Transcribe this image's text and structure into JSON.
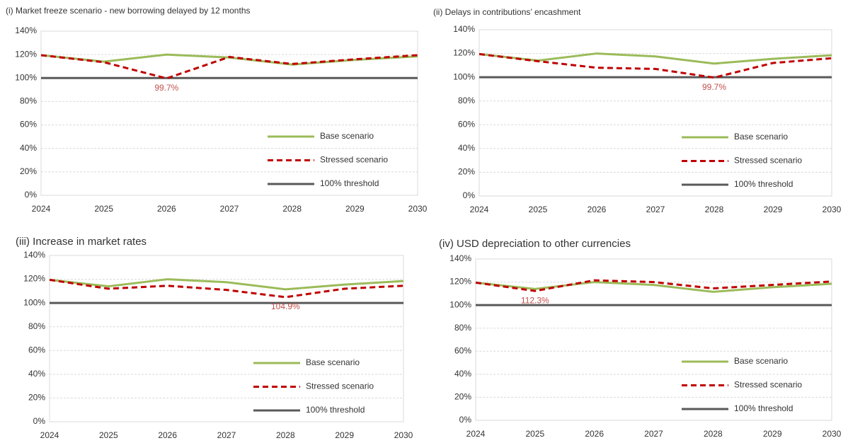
{
  "chart_data": [
    {
      "type": "line",
      "title": "(i) Market freeze scenario - new borrowing delayed by 12 months",
      "x": [
        2024,
        2025,
        2026,
        2027,
        2028,
        2029,
        2030
      ],
      "xlim": [
        2024,
        2030
      ],
      "xticks": [
        2024,
        2025,
        2026,
        2027,
        2028,
        2029,
        2030
      ],
      "ylim": [
        0,
        140
      ],
      "yticks": [
        {
          "value": 0,
          "label": "0%"
        },
        {
          "value": 20,
          "label": "20%"
        },
        {
          "value": 40,
          "label": "40%"
        },
        {
          "value": 60,
          "label": "60%"
        },
        {
          "value": 80,
          "label": "80%"
        },
        {
          "value": 100,
          "label": "100%"
        },
        {
          "value": 120,
          "label": "120%"
        },
        {
          "value": 140,
          "label": "140%"
        }
      ],
      "grid": true,
      "legend": "lower right",
      "series": [
        {
          "name": "Base scenario",
          "color": "#9bbb59",
          "style": "solid",
          "values": [
            119.5,
            114,
            120,
            117.5,
            111.5,
            115.5,
            118.5
          ]
        },
        {
          "name": "Stressed scenario",
          "color": "#c00000",
          "style": "dashed",
          "values": [
            119.5,
            113.5,
            99.7,
            118,
            112,
            116,
            119.5
          ]
        },
        {
          "name": "100% threshold",
          "color": "#595959",
          "style": "solid",
          "values": [
            100,
            100,
            100,
            100,
            100,
            100,
            100
          ]
        }
      ],
      "annotations": [
        {
          "text": "99.7%",
          "x": 2026,
          "y": 99.7
        }
      ]
    },
    {
      "type": "line",
      "title": "(ii) Delays in contributions’ encashment",
      "x": [
        2024,
        2025,
        2026,
        2027,
        2028,
        2029,
        2030
      ],
      "xlim": [
        2024,
        2030
      ],
      "xticks": [
        2024,
        2025,
        2026,
        2027,
        2028,
        2029,
        2030
      ],
      "ylim": [
        0,
        140
      ],
      "yticks": [
        {
          "value": 0,
          "label": "0%"
        },
        {
          "value": 20,
          "label": "20%"
        },
        {
          "value": 40,
          "label": "40%"
        },
        {
          "value": 60,
          "label": "60%"
        },
        {
          "value": 80,
          "label": "80%"
        },
        {
          "value": 100,
          "label": "100%"
        },
        {
          "value": 120,
          "label": "120%"
        },
        {
          "value": 140,
          "label": "140%"
        }
      ],
      "grid": true,
      "legend": "lower right",
      "series": [
        {
          "name": "Base scenario",
          "color": "#9bbb59",
          "style": "solid",
          "values": [
            119.5,
            114,
            120,
            117.5,
            111.5,
            115.5,
            118.5
          ]
        },
        {
          "name": "Stressed scenario",
          "color": "#c00000",
          "style": "dashed",
          "values": [
            119.5,
            113.5,
            108,
            107,
            99.7,
            112,
            116
          ]
        },
        {
          "name": "100% threshold",
          "color": "#595959",
          "style": "solid",
          "values": [
            100,
            100,
            100,
            100,
            100,
            100,
            100
          ]
        }
      ],
      "annotations": [
        {
          "text": "99.7%",
          "x": 2028,
          "y": 99.7
        }
      ]
    },
    {
      "type": "line",
      "title": "(iii) Increase in market rates",
      "x": [
        2024,
        2025,
        2026,
        2027,
        2028,
        2029,
        2030
      ],
      "xlim": [
        2024,
        2030
      ],
      "xticks": [
        2024,
        2025,
        2026,
        2027,
        2028,
        2029,
        2030
      ],
      "ylim": [
        0,
        140
      ],
      "yticks": [
        {
          "value": 0,
          "label": "0%"
        },
        {
          "value": 20,
          "label": "20%"
        },
        {
          "value": 40,
          "label": "40%"
        },
        {
          "value": 60,
          "label": "60%"
        },
        {
          "value": 80,
          "label": "80%"
        },
        {
          "value": 100,
          "label": "100%"
        },
        {
          "value": 120,
          "label": "120%"
        },
        {
          "value": 140,
          "label": "140%"
        }
      ],
      "grid": true,
      "legend": "lower right",
      "series": [
        {
          "name": "Base scenario",
          "color": "#9bbb59",
          "style": "solid",
          "values": [
            119.5,
            114,
            120,
            117.5,
            111.5,
            115.5,
            118.5
          ]
        },
        {
          "name": "Stressed scenario",
          "color": "#c00000",
          "style": "dashed",
          "values": [
            119.5,
            112,
            114.5,
            111,
            104.9,
            112,
            114.5
          ]
        },
        {
          "name": "100% threshold",
          "color": "#595959",
          "style": "solid",
          "values": [
            100,
            100,
            100,
            100,
            100,
            100,
            100
          ]
        }
      ],
      "annotations": [
        {
          "text": "104.9%",
          "x": 2028,
          "y": 104.9
        }
      ]
    },
    {
      "type": "line",
      "title": "(iv) USD depreciation to other currencies",
      "x": [
        2024,
        2025,
        2026,
        2027,
        2028,
        2029,
        2030
      ],
      "xlim": [
        2024,
        2030
      ],
      "xticks": [
        2024,
        2025,
        2026,
        2027,
        2028,
        2029,
        2030
      ],
      "ylim": [
        0,
        140
      ],
      "yticks": [
        {
          "value": 0,
          "label": "0%"
        },
        {
          "value": 20,
          "label": "20%"
        },
        {
          "value": 40,
          "label": "40%"
        },
        {
          "value": 60,
          "label": "60%"
        },
        {
          "value": 80,
          "label": "80%"
        },
        {
          "value": 100,
          "label": "100%"
        },
        {
          "value": 120,
          "label": "120%"
        },
        {
          "value": 140,
          "label": "140%"
        }
      ],
      "grid": true,
      "legend": "lower right",
      "series": [
        {
          "name": "Base scenario",
          "color": "#9bbb59",
          "style": "solid",
          "values": [
            119.5,
            114,
            120,
            117.5,
            111.5,
            115.5,
            118.5
          ]
        },
        {
          "name": "Stressed scenario",
          "color": "#c00000",
          "style": "dashed",
          "values": [
            119.5,
            112.3,
            121.5,
            120,
            114.5,
            117.5,
            120.5
          ]
        },
        {
          "name": "100% threshold",
          "color": "#595959",
          "style": "solid",
          "values": [
            100,
            100,
            100,
            100,
            100,
            100,
            100
          ]
        }
      ],
      "annotations": [
        {
          "text": "112.3%",
          "x": 2025,
          "y": 112.3
        }
      ]
    }
  ]
}
